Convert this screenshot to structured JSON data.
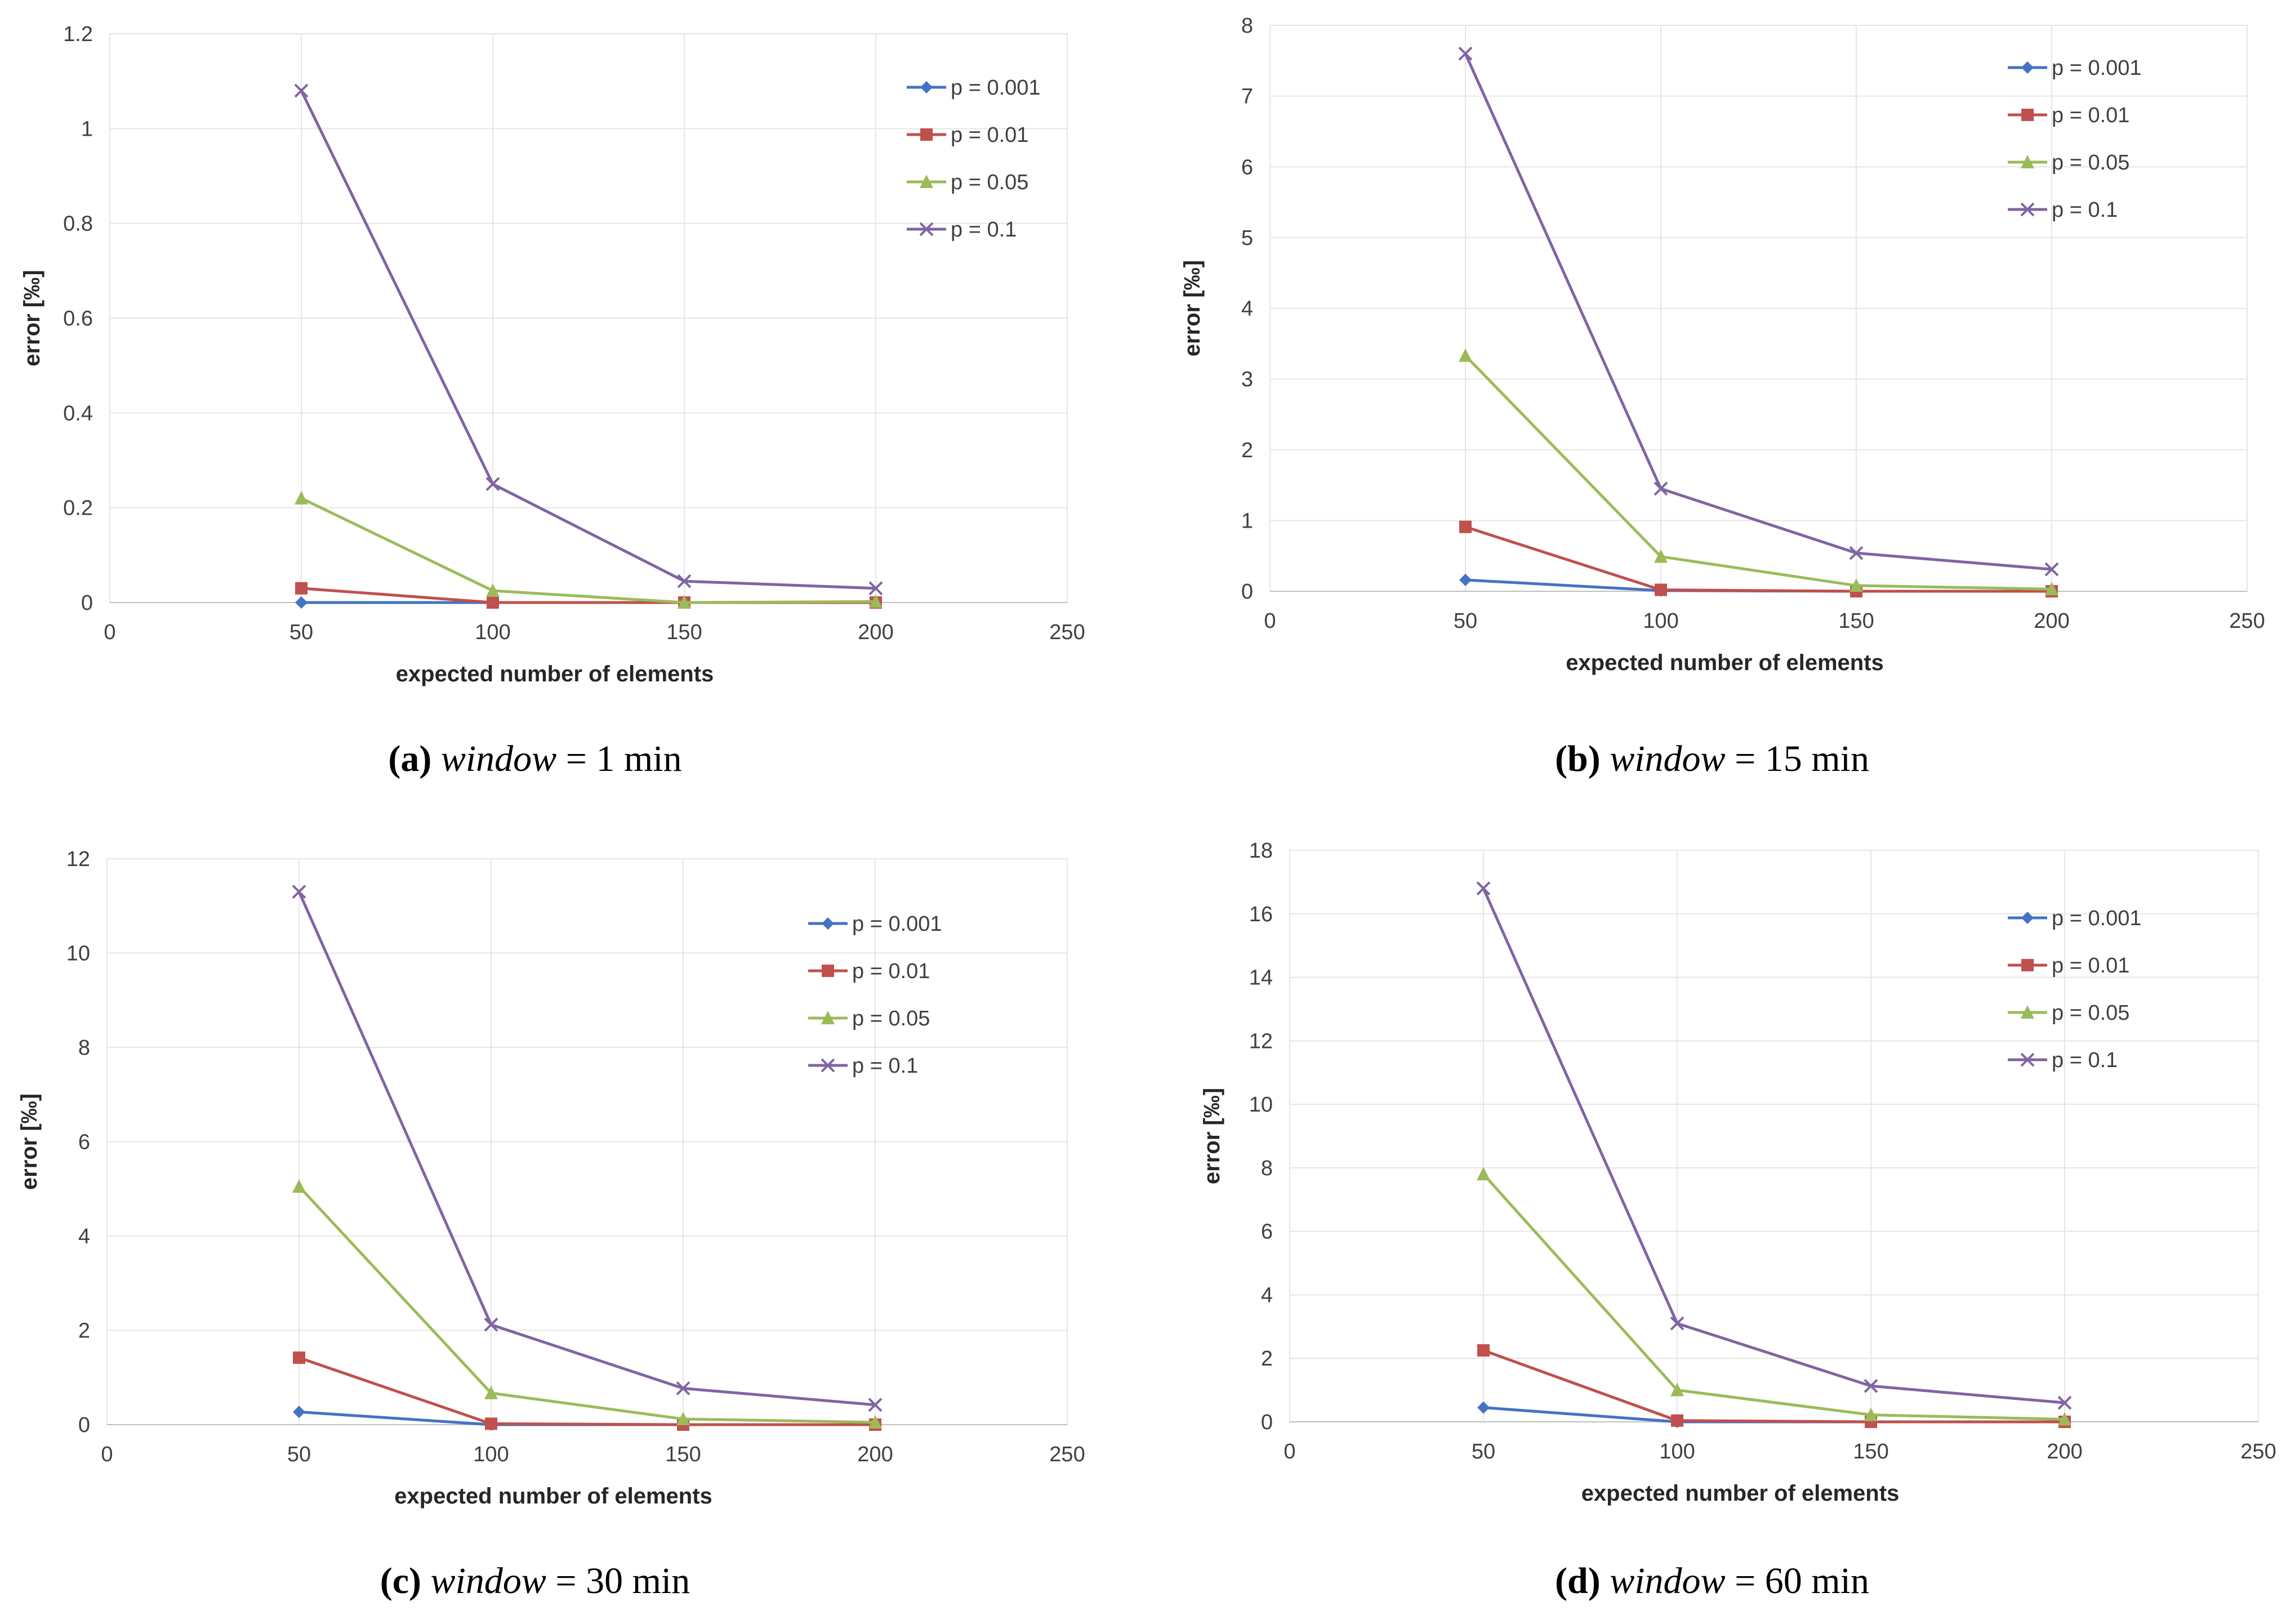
{
  "chart_data": [
    {
      "type": "line",
      "x": [
        50,
        100,
        150,
        200
      ],
      "xlabel": "expected number of elements",
      "ylabel": "error [‰]",
      "xlim": [
        0,
        250
      ],
      "xticks": [
        "0",
        "50",
        "100",
        "150",
        "200",
        "250"
      ],
      "ylim": [
        0,
        1.2
      ],
      "yticks": [
        "0",
        "0.2",
        "0.4",
        "0.6",
        "0.8",
        "1",
        "1.2"
      ],
      "legend": "top-right",
      "grid": true,
      "series": [
        {
          "name": "p = 0.001",
          "color": "#4472C4",
          "marker": "diamond",
          "values": [
            0.0,
            0.0,
            0.0,
            0.0
          ]
        },
        {
          "name": "p = 0.01",
          "color": "#C0504D",
          "marker": "square",
          "values": [
            0.03,
            0.0,
            0.0,
            0.0
          ]
        },
        {
          "name": "p = 0.05",
          "color": "#9BBB59",
          "marker": "triangle",
          "values": [
            0.22,
            0.025,
            0.0,
            0.002
          ]
        },
        {
          "name": "p = 0.1",
          "color": "#8064A2",
          "marker": "x",
          "values": [
            1.08,
            0.25,
            0.045,
            0.03
          ]
        }
      ],
      "caption": {
        "letter": "(a)",
        "variable": "window",
        "value": "= 1 min"
      }
    },
    {
      "type": "line",
      "x": [
        50,
        100,
        150,
        200
      ],
      "xlabel": "expected number of elements",
      "ylabel": "error [‰]",
      "xlim": [
        0,
        250
      ],
      "xticks": [
        "0",
        "50",
        "100",
        "150",
        "200",
        "250"
      ],
      "ylim": [
        0,
        8
      ],
      "yticks": [
        "0",
        "1",
        "2",
        "3",
        "4",
        "5",
        "6",
        "7",
        "8"
      ],
      "legend": "top-right",
      "grid": true,
      "series": [
        {
          "name": "p = 0.001",
          "color": "#4472C4",
          "marker": "diamond",
          "values": [
            0.16,
            0.01,
            0.0,
            0.0
          ]
        },
        {
          "name": "p = 0.01",
          "color": "#C0504D",
          "marker": "square",
          "values": [
            0.91,
            0.02,
            0.0,
            0.0
          ]
        },
        {
          "name": "p = 0.05",
          "color": "#9BBB59",
          "marker": "triangle",
          "values": [
            3.33,
            0.49,
            0.08,
            0.03
          ]
        },
        {
          "name": "p = 0.1",
          "color": "#8064A2",
          "marker": "x",
          "values": [
            7.6,
            1.45,
            0.54,
            0.31
          ]
        }
      ],
      "caption": {
        "letter": "(b)",
        "variable": "window",
        "value": "= 15 min"
      }
    },
    {
      "type": "line",
      "x": [
        50,
        100,
        150,
        200
      ],
      "xlabel": "expected number of elements",
      "ylabel": "error [‰]",
      "xlim": [
        0,
        250
      ],
      "xticks": [
        "0",
        "50",
        "100",
        "150",
        "200",
        "250"
      ],
      "ylim": [
        0,
        12
      ],
      "yticks": [
        "0",
        "2",
        "4",
        "6",
        "8",
        "10",
        "12"
      ],
      "legend": "top-right",
      "grid": true,
      "series": [
        {
          "name": "p = 0.001",
          "color": "#4472C4",
          "marker": "diamond",
          "values": [
            0.27,
            0.0,
            0.0,
            0.0
          ]
        },
        {
          "name": "p = 0.01",
          "color": "#C0504D",
          "marker": "square",
          "values": [
            1.42,
            0.02,
            0.0,
            0.0
          ]
        },
        {
          "name": "p = 0.05",
          "color": "#9BBB59",
          "marker": "triangle",
          "values": [
            5.05,
            0.67,
            0.12,
            0.05
          ]
        },
        {
          "name": "p = 0.1",
          "color": "#8064A2",
          "marker": "x",
          "values": [
            11.3,
            2.12,
            0.77,
            0.42
          ]
        }
      ],
      "caption": {
        "letter": "(c)",
        "variable": "window",
        "value": "= 30 min"
      }
    },
    {
      "type": "line",
      "x": [
        50,
        100,
        150,
        200
      ],
      "xlabel": "expected number of elements",
      "ylabel": "error [‰]",
      "xlim": [
        0,
        250
      ],
      "xticks": [
        "0",
        "50",
        "100",
        "150",
        "200",
        "250"
      ],
      "ylim": [
        0,
        18
      ],
      "yticks": [
        "0",
        "2",
        "4",
        "6",
        "8",
        "10",
        "12",
        "14",
        "16",
        "18"
      ],
      "legend": "top-right",
      "grid": true,
      "series": [
        {
          "name": "p = 0.001",
          "color": "#4472C4",
          "marker": "diamond",
          "values": [
            0.45,
            0.0,
            0.0,
            0.0
          ]
        },
        {
          "name": "p = 0.01",
          "color": "#C0504D",
          "marker": "square",
          "values": [
            2.25,
            0.04,
            0.0,
            0.0
          ]
        },
        {
          "name": "p = 0.05",
          "color": "#9BBB59",
          "marker": "triangle",
          "values": [
            7.8,
            1.0,
            0.22,
            0.08
          ]
        },
        {
          "name": "p = 0.1",
          "color": "#8064A2",
          "marker": "x",
          "values": [
            16.8,
            3.1,
            1.13,
            0.6
          ]
        }
      ],
      "caption": {
        "letter": "(d)",
        "variable": "window",
        "value": "= 60 min"
      }
    }
  ]
}
